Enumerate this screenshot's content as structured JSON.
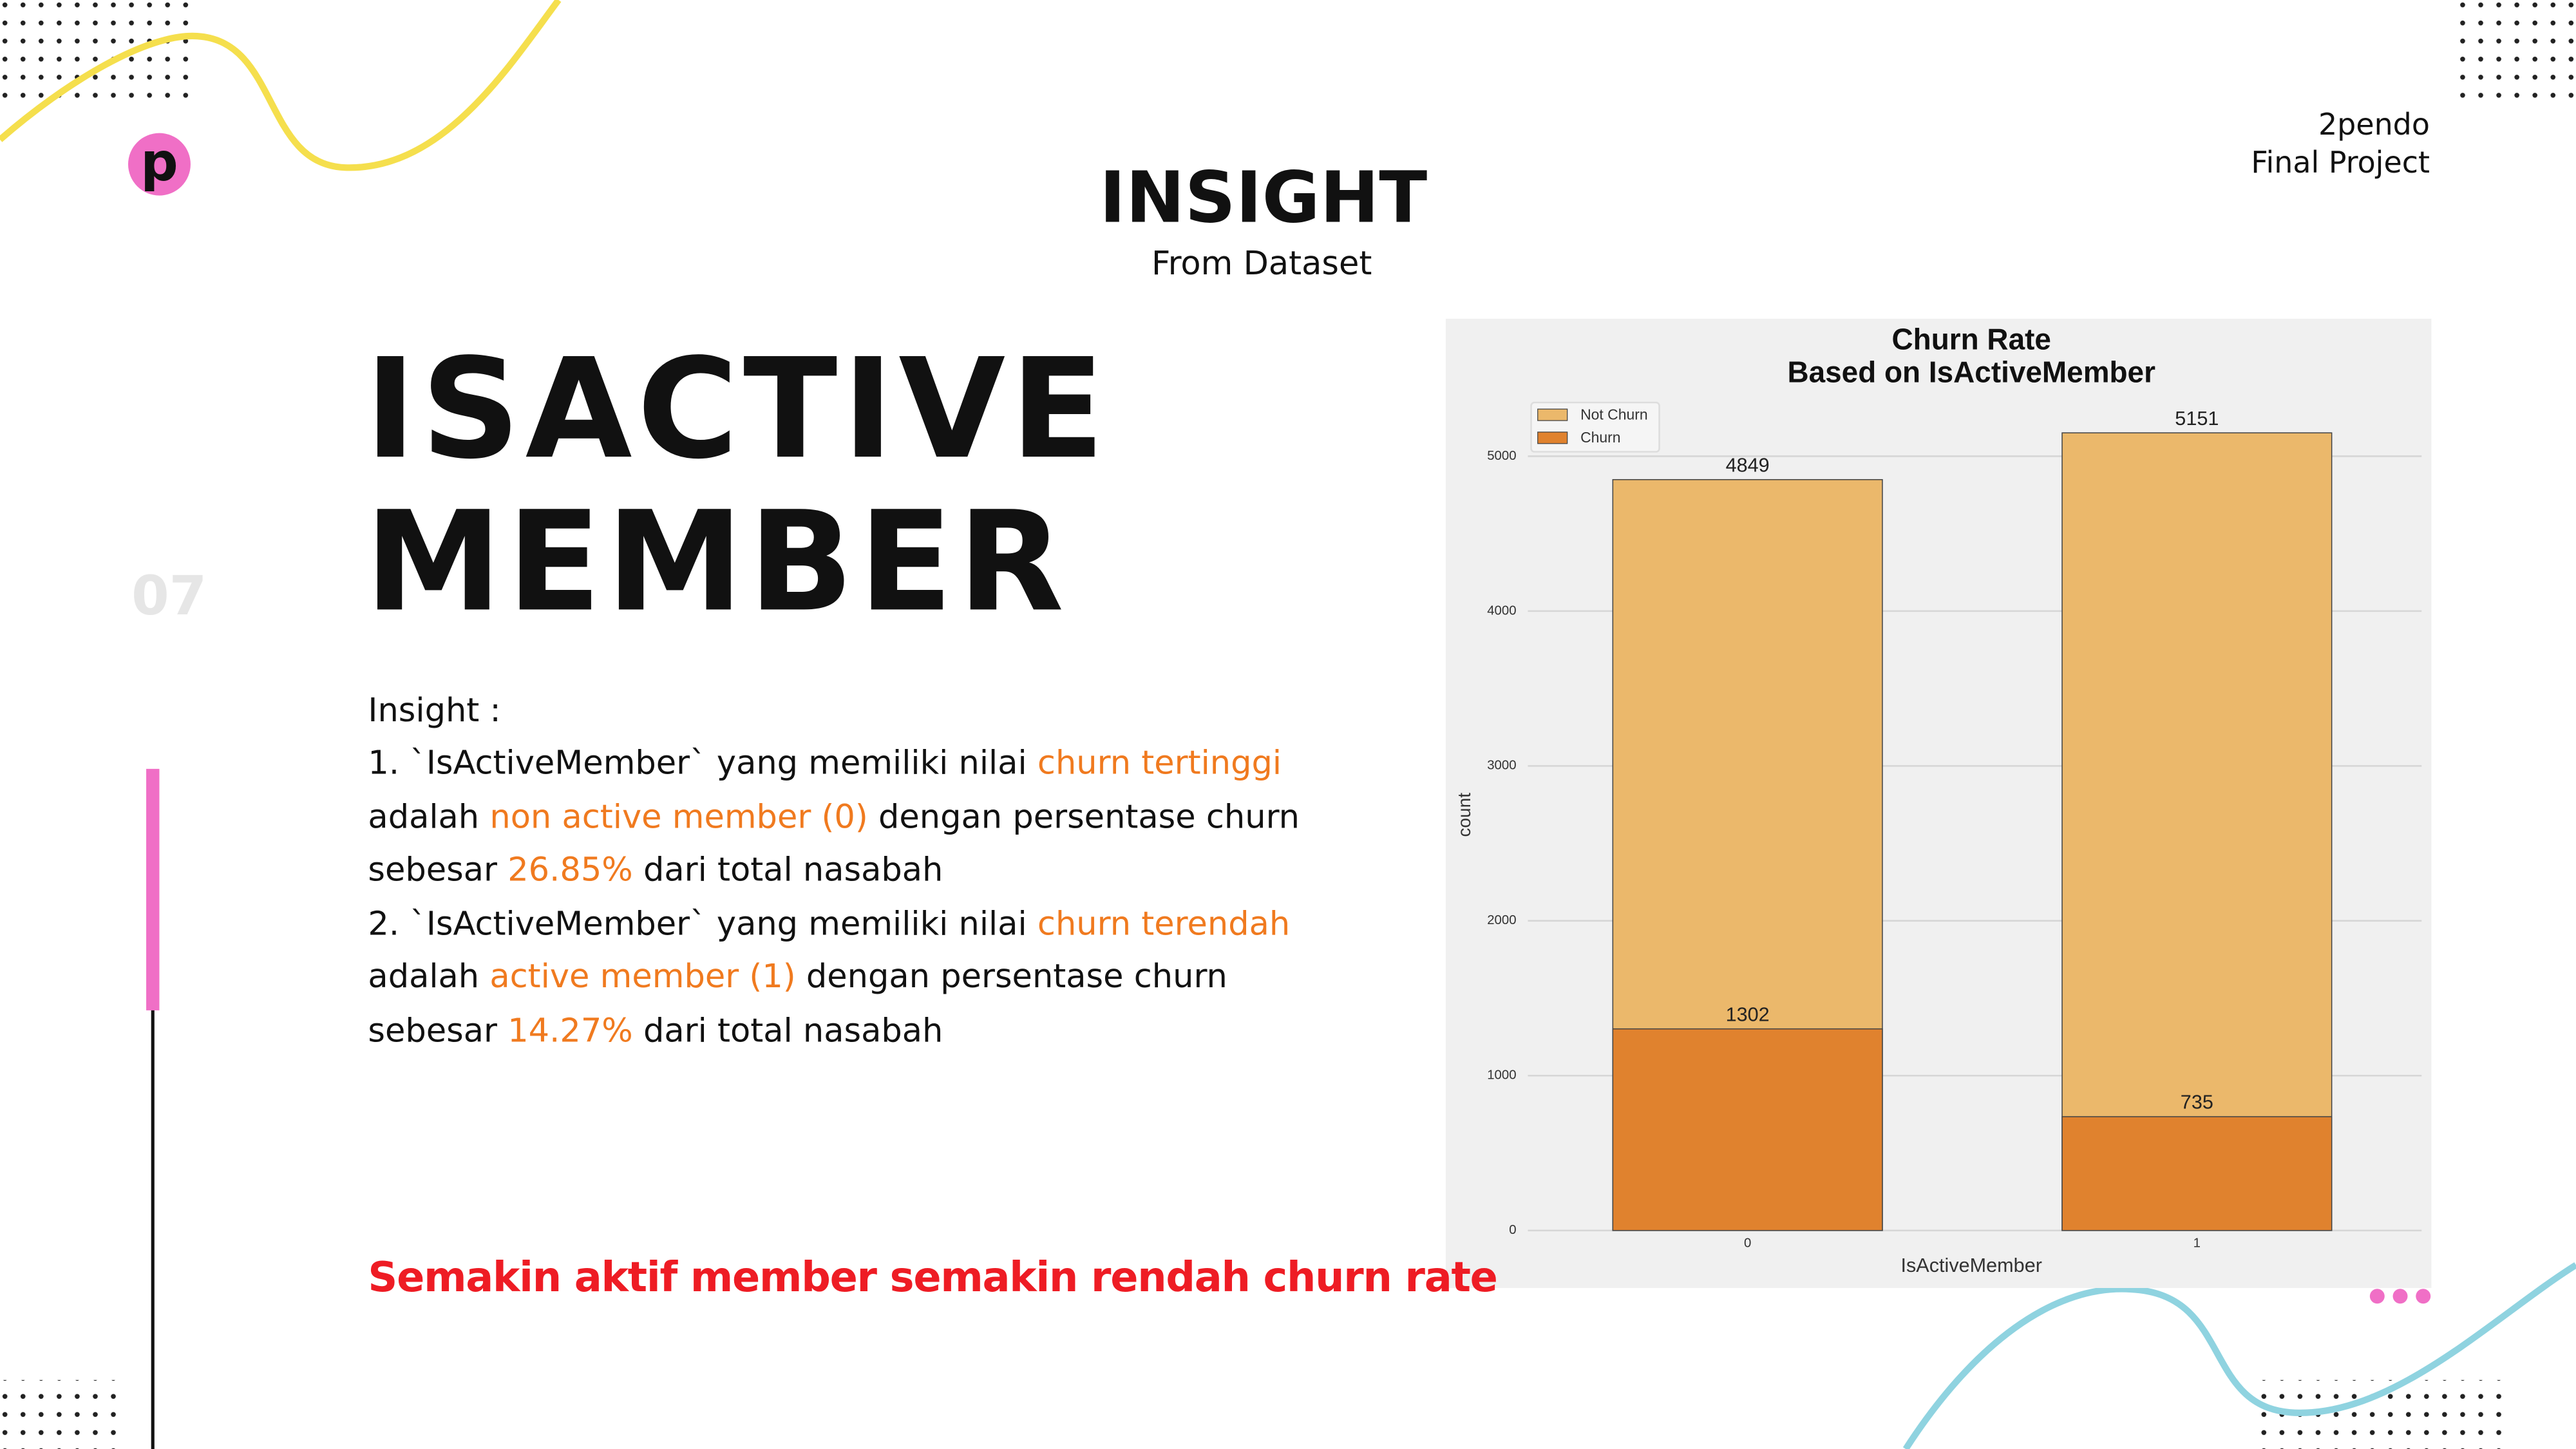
{
  "slide": {
    "logo": "p",
    "heading": "INSIGHT",
    "subheading": "From Dataset",
    "brand": [
      "2pendo",
      "Final Project"
    ],
    "number": "07",
    "title": [
      "ISACTIVE",
      "MEMBER"
    ],
    "insight_label": "Insight :",
    "accent_color": "#f07a1f",
    "insight_lines": [
      [
        {
          "text": "1. `IsActiveMember` yang memiliki nilai "
        },
        {
          "text": "churn tertinggi",
          "accent": true
        }
      ],
      [
        {
          "text": "adalah "
        },
        {
          "text": "non active member (0)",
          "accent": true
        },
        {
          "text": " dengan persentase churn"
        }
      ],
      [
        {
          "text": "sebesar "
        },
        {
          "text": "26.85%",
          "accent": true
        },
        {
          "text": " dari total nasabah"
        }
      ],
      [
        {
          "text": "2. `IsActiveMember` yang memiliki nilai "
        },
        {
          "text": "churn terendah",
          "accent": true
        }
      ],
      [
        {
          "text": "adalah "
        },
        {
          "text": "active member (1)",
          "accent": true
        },
        {
          "text": " dengan persentase churn"
        }
      ],
      [
        {
          "text": "sebesar "
        },
        {
          "text": "14.27%",
          "accent": true
        },
        {
          "text": " dari total nasabah"
        }
      ]
    ],
    "conclusion": "Semakin aktif member semakin rendah churn rate"
  },
  "chart_data": {
    "type": "bar",
    "title": "Churn Rate",
    "subtitle": "Based on IsActiveMember",
    "categories": [
      "0",
      "1"
    ],
    "series": [
      {
        "name": "Not Churn",
        "color": "#ebb86b",
        "values": [
          4849,
          5151
        ]
      },
      {
        "name": "Churn",
        "color": "#e0822e",
        "values": [
          1302,
          735
        ]
      }
    ],
    "xlabel": "IsActiveMember",
    "ylabel": "count",
    "ylim": [
      0,
      5400
    ],
    "yticks": [
      0,
      1000,
      2000,
      3000,
      4000,
      5000
    ],
    "grid": true,
    "legend": "upper-left"
  }
}
